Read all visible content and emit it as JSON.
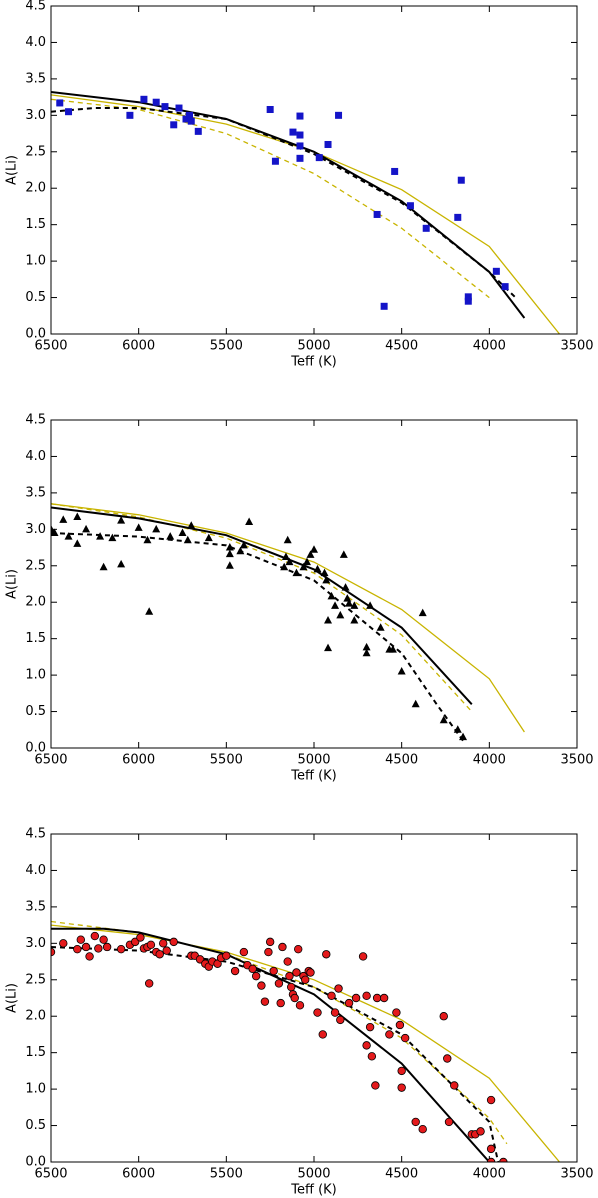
{
  "chart_data": [
    {
      "type": "scatter",
      "xlabel": "Teff (K)",
      "ylabel": "A(Li)",
      "xlim": [
        6500,
        3500
      ],
      "ylim": [
        0,
        4.5
      ],
      "xticks": [
        6500,
        6000,
        5500,
        5000,
        4500,
        4000,
        3500
      ],
      "yticks": [
        {
          "value": 0,
          "label": "0.0"
        },
        0.5,
        {
          "value": 1,
          "label": "1.0"
        },
        1.5,
        {
          "value": 2,
          "label": "2.0"
        },
        2.5,
        {
          "value": 3,
          "label": "3.0"
        },
        3.5,
        {
          "value": 4,
          "label": "4.0"
        },
        4.5
      ],
      "series": [
        {
          "color": "#c8b400",
          "line": "solid",
          "x": [
            6500,
            6000,
            5500,
            5000,
            4500,
            4000,
            3600
          ],
          "values": [
            3.28,
            3.12,
            2.88,
            2.5,
            1.98,
            1.2,
            0.0
          ]
        },
        {
          "color": "#c8b400",
          "line": "dashed",
          "x": [
            6500,
            6000,
            5500,
            5000,
            4500,
            4000
          ],
          "values": [
            3.22,
            3.08,
            2.75,
            2.2,
            1.45,
            0.5
          ]
        },
        {
          "color": "#000000",
          "line": "solid",
          "x": [
            6500,
            6000,
            5500,
            5000,
            4500,
            4000,
            3800
          ],
          "values": [
            3.32,
            3.18,
            2.95,
            2.5,
            1.82,
            0.85,
            0.22
          ]
        },
        {
          "color": "#000000",
          "line": "dashed",
          "x": [
            6500,
            6250,
            6000,
            5500,
            5000,
            4500,
            4000,
            3850
          ],
          "values": [
            3.05,
            3.1,
            3.1,
            2.95,
            2.47,
            1.8,
            0.85,
            0.5
          ]
        },
        {
          "color": "#1414c8",
          "marker": "square",
          "x": [
            6450,
            6400,
            6050,
            5970,
            5900,
            5850,
            5800,
            5770,
            5730,
            5710,
            5700,
            5660,
            5250,
            5220,
            5120,
            5080,
            5080,
            5080,
            5080,
            4970,
            4920,
            4860,
            4640,
            4600,
            4540,
            4450,
            4360,
            4180,
            4160,
            4120,
            4120,
            3960,
            3910
          ],
          "values": [
            3.17,
            3.05,
            3.0,
            3.22,
            3.18,
            3.12,
            2.87,
            3.1,
            2.95,
            3.0,
            2.92,
            2.78,
            3.08,
            2.37,
            2.77,
            2.99,
            2.73,
            2.58,
            2.41,
            2.42,
            2.6,
            3.0,
            1.64,
            0.38,
            2.23,
            1.76,
            1.45,
            1.6,
            2.11,
            0.51,
            0.45,
            0.86,
            0.65
          ]
        }
      ]
    },
    {
      "type": "scatter",
      "xlabel": "Teff (K)",
      "ylabel": "A(Li)",
      "xlim": [
        6500,
        3500
      ],
      "ylim": [
        0,
        4.5
      ],
      "xticks": [
        6500,
        6000,
        5500,
        5000,
        4500,
        4000,
        3500
      ],
      "yticks": [
        {
          "value": 0,
          "label": "0.0"
        },
        0.5,
        {
          "value": 1,
          "label": "1.0"
        },
        1.5,
        {
          "value": 2,
          "label": "2.0"
        },
        2.5,
        {
          "value": 3,
          "label": "3.0"
        },
        3.5,
        {
          "value": 4,
          "label": "4.0"
        },
        4.5
      ],
      "series": [
        {
          "color": "#c8b400",
          "line": "solid",
          "x": [
            6500,
            6000,
            5500,
            5000,
            4500,
            4000,
            3800
          ],
          "values": [
            3.35,
            3.2,
            2.95,
            2.55,
            1.9,
            0.95,
            0.22
          ]
        },
        {
          "color": "#c8b400",
          "line": "dashed",
          "x": [
            6500,
            6000,
            5500,
            5000,
            4500,
            4100
          ],
          "values": [
            3.35,
            3.17,
            2.88,
            2.4,
            1.55,
            0.5
          ]
        },
        {
          "color": "#000000",
          "line": "solid",
          "x": [
            6500,
            6000,
            5500,
            5000,
            4500,
            4100
          ],
          "values": [
            3.3,
            3.15,
            2.92,
            2.45,
            1.65,
            0.6
          ]
        },
        {
          "color": "#000000",
          "line": "dashed",
          "x": [
            6500,
            6000,
            5500,
            5000,
            4500,
            4300,
            4150
          ],
          "values": [
            2.95,
            2.9,
            2.78,
            2.3,
            1.3,
            0.6,
            0.1
          ]
        },
        {
          "color": "#000000",
          "marker": "triangle",
          "x": [
            6500,
            6480,
            6430,
            6400,
            6350,
            6350,
            6300,
            6220,
            6200,
            6150,
            6100,
            6100,
            6000,
            5950,
            5940,
            5900,
            5820,
            5750,
            5720,
            5700,
            5600,
            5480,
            5480,
            5480,
            5420,
            5400,
            5370,
            5170,
            5160,
            5150,
            5140,
            5100,
            5060,
            5040,
            5020,
            5000,
            4980,
            4940,
            4930,
            4920,
            4920,
            4900,
            4880,
            4850,
            4830,
            4820,
            4810,
            4800,
            4770,
            4770,
            4700,
            4700,
            4680,
            4620,
            4570,
            4550,
            4500,
            4420,
            4380,
            4260,
            4180,
            4150
          ],
          "values": [
            3.0,
            2.95,
            3.13,
            2.9,
            3.17,
            2.8,
            3.0,
            2.9,
            2.48,
            2.88,
            2.52,
            3.12,
            3.02,
            2.85,
            1.87,
            3.0,
            2.9,
            2.95,
            2.85,
            3.05,
            2.88,
            2.75,
            2.66,
            2.5,
            2.7,
            2.78,
            3.1,
            2.48,
            2.62,
            2.85,
            2.55,
            2.4,
            2.48,
            2.55,
            2.65,
            2.72,
            2.45,
            2.4,
            2.3,
            1.75,
            1.37,
            2.08,
            1.95,
            1.82,
            2.65,
            2.2,
            2.05,
            1.98,
            1.95,
            1.75,
            1.38,
            1.3,
            1.95,
            1.65,
            1.35,
            1.35,
            1.05,
            0.6,
            1.85,
            0.38,
            0.25,
            0.15
          ]
        }
      ]
    },
    {
      "type": "scatter",
      "xlabel": "Teff (K)",
      "ylabel": "A(Li)",
      "xlim": [
        6500,
        3500
      ],
      "ylim": [
        0,
        4.5
      ],
      "xticks": [
        6500,
        6000,
        5500,
        5000,
        4500,
        4000,
        3500
      ],
      "yticks": [
        {
          "value": 0,
          "label": "0.0"
        },
        0.5,
        {
          "value": 1,
          "label": "1.0"
        },
        1.5,
        {
          "value": 2,
          "label": "2.0"
        },
        2.5,
        {
          "value": 3,
          "label": "3.0"
        },
        3.5,
        {
          "value": 4,
          "label": "4.0"
        },
        4.5
      ],
      "series": [
        {
          "color": "#c8b400",
          "line": "solid",
          "x": [
            6500,
            6000,
            5500,
            5000,
            4500,
            4000,
            3600
          ],
          "values": [
            3.25,
            3.12,
            2.88,
            2.5,
            1.95,
            1.15,
            0.0
          ]
        },
        {
          "color": "#c8b400",
          "line": "dashed",
          "x": [
            6500,
            6000,
            5500,
            5000,
            4500,
            4000,
            3900
          ],
          "values": [
            3.3,
            3.15,
            2.85,
            2.4,
            1.7,
            0.6,
            0.25
          ]
        },
        {
          "color": "#000000",
          "line": "solid",
          "x": [
            6500,
            6200,
            6000,
            5500,
            5000,
            4500,
            4000
          ],
          "values": [
            3.2,
            3.2,
            3.15,
            2.85,
            2.3,
            1.35,
            0.0
          ]
        },
        {
          "color": "#000000",
          "line": "dashed",
          "x": [
            6500,
            6000,
            5500,
            5000,
            4500,
            4000,
            3950
          ],
          "values": [
            2.95,
            2.9,
            2.75,
            2.4,
            1.75,
            0.55,
            0.0
          ]
        },
        {
          "color": "#e41a1c",
          "marker": "circle",
          "x": [
            6500,
            6430,
            6350,
            6330,
            6300,
            6280,
            6250,
            6230,
            6200,
            6180,
            6100,
            6050,
            6020,
            5990,
            5970,
            5950,
            5940,
            5930,
            5900,
            5880,
            5860,
            5840,
            5800,
            5700,
            5680,
            5650,
            5620,
            5600,
            5580,
            5550,
            5530,
            5500,
            5450,
            5400,
            5380,
            5350,
            5330,
            5300,
            5280,
            5260,
            5250,
            5230,
            5200,
            5190,
            5180,
            5150,
            5140,
            5130,
            5120,
            5110,
            5100,
            5090,
            5080,
            5060,
            5050,
            5030,
            5020,
            4980,
            4950,
            4930,
            4900,
            4880,
            4860,
            4850,
            4800,
            4760,
            4720,
            4700,
            4700,
            4680,
            4670,
            4650,
            4640,
            4600,
            4570,
            4530,
            4510,
            4500,
            4500,
            4480,
            4420,
            4380,
            4260,
            4240,
            4230,
            4200,
            4100,
            4080,
            4050,
            3990,
            3990,
            3990,
            3920
          ],
          "values": [
            2.88,
            3.0,
            2.92,
            3.05,
            2.95,
            2.82,
            3.1,
            2.93,
            3.05,
            2.95,
            2.92,
            2.98,
            3.02,
            3.08,
            2.93,
            2.95,
            2.45,
            2.98,
            2.88,
            2.85,
            3.0,
            2.9,
            3.02,
            2.83,
            2.83,
            2.78,
            2.72,
            2.68,
            2.75,
            2.72,
            2.8,
            2.83,
            2.62,
            2.88,
            2.7,
            2.65,
            2.55,
            2.42,
            2.2,
            2.88,
            3.02,
            2.62,
            2.45,
            2.18,
            2.95,
            2.75,
            2.55,
            2.4,
            2.3,
            2.25,
            2.6,
            2.92,
            2.15,
            2.55,
            2.5,
            2.62,
            2.6,
            2.05,
            1.75,
            2.85,
            2.28,
            2.05,
            2.38,
            1.95,
            2.18,
            2.25,
            2.82,
            2.28,
            1.6,
            1.85,
            1.45,
            1.05,
            2.25,
            2.25,
            1.75,
            2.05,
            1.88,
            1.25,
            1.02,
            1.7,
            0.55,
            0.45,
            2.0,
            1.42,
            0.55,
            1.05,
            0.38,
            0.38,
            0.42,
            0.18,
            0.85,
            0.0,
            0.0
          ]
        }
      ]
    }
  ]
}
